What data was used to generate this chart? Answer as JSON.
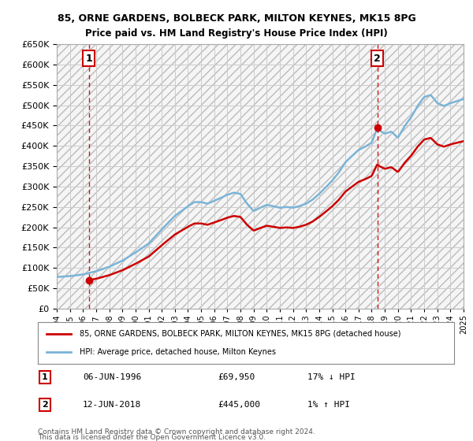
{
  "title": "85, ORNE GARDENS, BOLBECK PARK, MILTON KEYNES, MK15 8PG",
  "subtitle": "Price paid vs. HM Land Registry's House Price Index (HPI)",
  "ylim": [
    0,
    650000
  ],
  "yticks": [
    0,
    50000,
    100000,
    150000,
    200000,
    250000,
    300000,
    350000,
    400000,
    450000,
    500000,
    550000,
    600000,
    650000
  ],
  "hpi_color": "#7ab4d8",
  "price_color": "#cc0000",
  "sale1_year": 1996.44,
  "sale1_price": 69950,
  "sale2_year": 2018.44,
  "sale2_price": 445000,
  "legend_label1": "85, ORNE GARDENS, BOLBECK PARK, MILTON KEYNES, MK15 8PG (detached house)",
  "legend_label2": "HPI: Average price, detached house, Milton Keynes",
  "table_row1_num": "1",
  "table_row1_date": "06-JUN-1996",
  "table_row1_price": "£69,950",
  "table_row1_hpi": "17% ↓ HPI",
  "table_row2_num": "2",
  "table_row2_date": "12-JUN-2018",
  "table_row2_price": "£445,000",
  "table_row2_hpi": "1% ↑ HPI",
  "footnote1": "Contains HM Land Registry data © Crown copyright and database right 2024.",
  "footnote2": "This data is licensed under the Open Government Licence v3.0.",
  "bg_color": "#ffffff",
  "grid_color": "#cccccc"
}
